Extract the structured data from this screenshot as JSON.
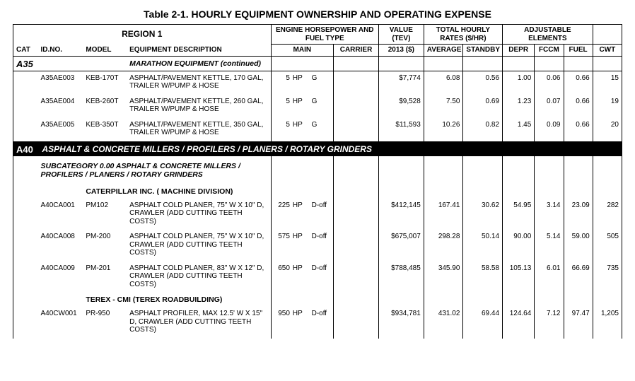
{
  "title": "Table 2-1.  HOURLY EQUIPMENT OWNERSHIP AND OPERATING EXPENSE",
  "region": "REGION  1",
  "headers": {
    "engine": "ENGINE HORSEPOWER AND FUEL TYPE",
    "value": "VALUE (TEV)",
    "rates": "TOTAL HOURLY RATES ($/HR)",
    "adj": "ADJUSTABLE ELEMENTS",
    "cat": "CAT",
    "id": "ID.NO.",
    "model": "MODEL",
    "desc": "EQUIPMENT DESCRIPTION",
    "main": "MAIN",
    "carrier": "CARRIER",
    "year": "2013  ($)",
    "avg": "AVERAGE",
    "stby": "STANDBY",
    "depr": "DEPR",
    "fccm": "FCCM",
    "fuel": "FUEL",
    "cwt": "CWT"
  },
  "a35": {
    "cat": "A35",
    "section": "MARATHON EQUIPMENT   (continued)",
    "rows": [
      {
        "id": "A35AE003",
        "model": "KEB-170T",
        "desc": "ASPHALT/PAVEMENT KETTLE, 170 GAL, TRAILER W/PUMP & HOSE",
        "hp": "5",
        "hpu": "HP",
        "ft": "G",
        "val": "$7,774",
        "avg": "6.08",
        "stby": "0.56",
        "depr": "1.00",
        "fccm": "0.06",
        "fuel": "0.66",
        "cwt": "15"
      },
      {
        "id": "A35AE004",
        "model": "KEB-260T",
        "desc": "ASPHALT/PAVEMENT KETTLE, 260 GAL, TRAILER W/PUMP & HOSE",
        "hp": "5",
        "hpu": "HP",
        "ft": "G",
        "val": "$9,528",
        "avg": "7.50",
        "stby": "0.69",
        "depr": "1.23",
        "fccm": "0.07",
        "fuel": "0.66",
        "cwt": "19"
      },
      {
        "id": "A35AE005",
        "model": "KEB-350T",
        "desc": "ASPHALT/PAVEMENT KETTLE, 350 GAL, TRAILER W/PUMP & HOSE",
        "hp": "5",
        "hpu": "HP",
        "ft": "G",
        "val": "$11,593",
        "avg": "10.26",
        "stby": "0.82",
        "depr": "1.45",
        "fccm": "0.09",
        "fuel": "0.66",
        "cwt": "20"
      }
    ]
  },
  "a40": {
    "cat": "A40",
    "bar": "ASPHALT & CONCRETE MILLERS / PROFILERS / PLANERS / ROTARY GRINDERS",
    "subcat": "SUBCATEGORY  0.00    ASPHALT & CONCRETE MILLERS / PROFILERS / PLANERS / ROTARY GRINDERS",
    "mfr1": "CATERPILLAR INC. ( MACHINE DIVISION)",
    "rows1": [
      {
        "id": "A40CA001",
        "model": "PM102",
        "desc": "ASPHALT COLD PLANER, 75\" W X 10\" D, CRAWLER (ADD CUTTING TEETH COSTS)",
        "hp": "225",
        "hpu": "HP",
        "ft": "D-off",
        "val": "$412,145",
        "avg": "167.41",
        "stby": "30.62",
        "depr": "54.95",
        "fccm": "3.14",
        "fuel": "23.09",
        "cwt": "282"
      },
      {
        "id": "A40CA008",
        "model": "PM-200",
        "desc": "ASPHALT COLD PLANER, 75\" W X 10\" D, CRAWLER (ADD CUTTING TEETH COSTS)",
        "hp": "575",
        "hpu": "HP",
        "ft": "D-off",
        "val": "$675,007",
        "avg": "298.28",
        "stby": "50.14",
        "depr": "90.00",
        "fccm": "5.14",
        "fuel": "59.00",
        "cwt": "505"
      },
      {
        "id": "A40CA009",
        "model": "PM-201",
        "desc": "ASPHALT COLD PLANER, 83\" W X 12\" D, CRAWLER (ADD CUTTING TEETH COSTS)",
        "hp": "650",
        "hpu": "HP",
        "ft": "D-off",
        "val": "$788,485",
        "avg": "345.90",
        "stby": "58.58",
        "depr": "105.13",
        "fccm": "6.01",
        "fuel": "66.69",
        "cwt": "735"
      }
    ],
    "mfr2": "TEREX - CMI (TEREX ROADBUILDING)",
    "rows2": [
      {
        "id": "A40CW001",
        "model": "PR-950",
        "desc": "ASPHALT PROFILER, MAX 12.5' W X 15\" D, CRAWLER (ADD CUTTING TEETH COSTS)",
        "hp": "950",
        "hpu": "HP",
        "ft": "D-off",
        "val": "$934,781",
        "avg": "431.02",
        "stby": "69.44",
        "depr": "124.64",
        "fccm": "7.12",
        "fuel": "97.47",
        "cwt": "1,205"
      }
    ]
  }
}
